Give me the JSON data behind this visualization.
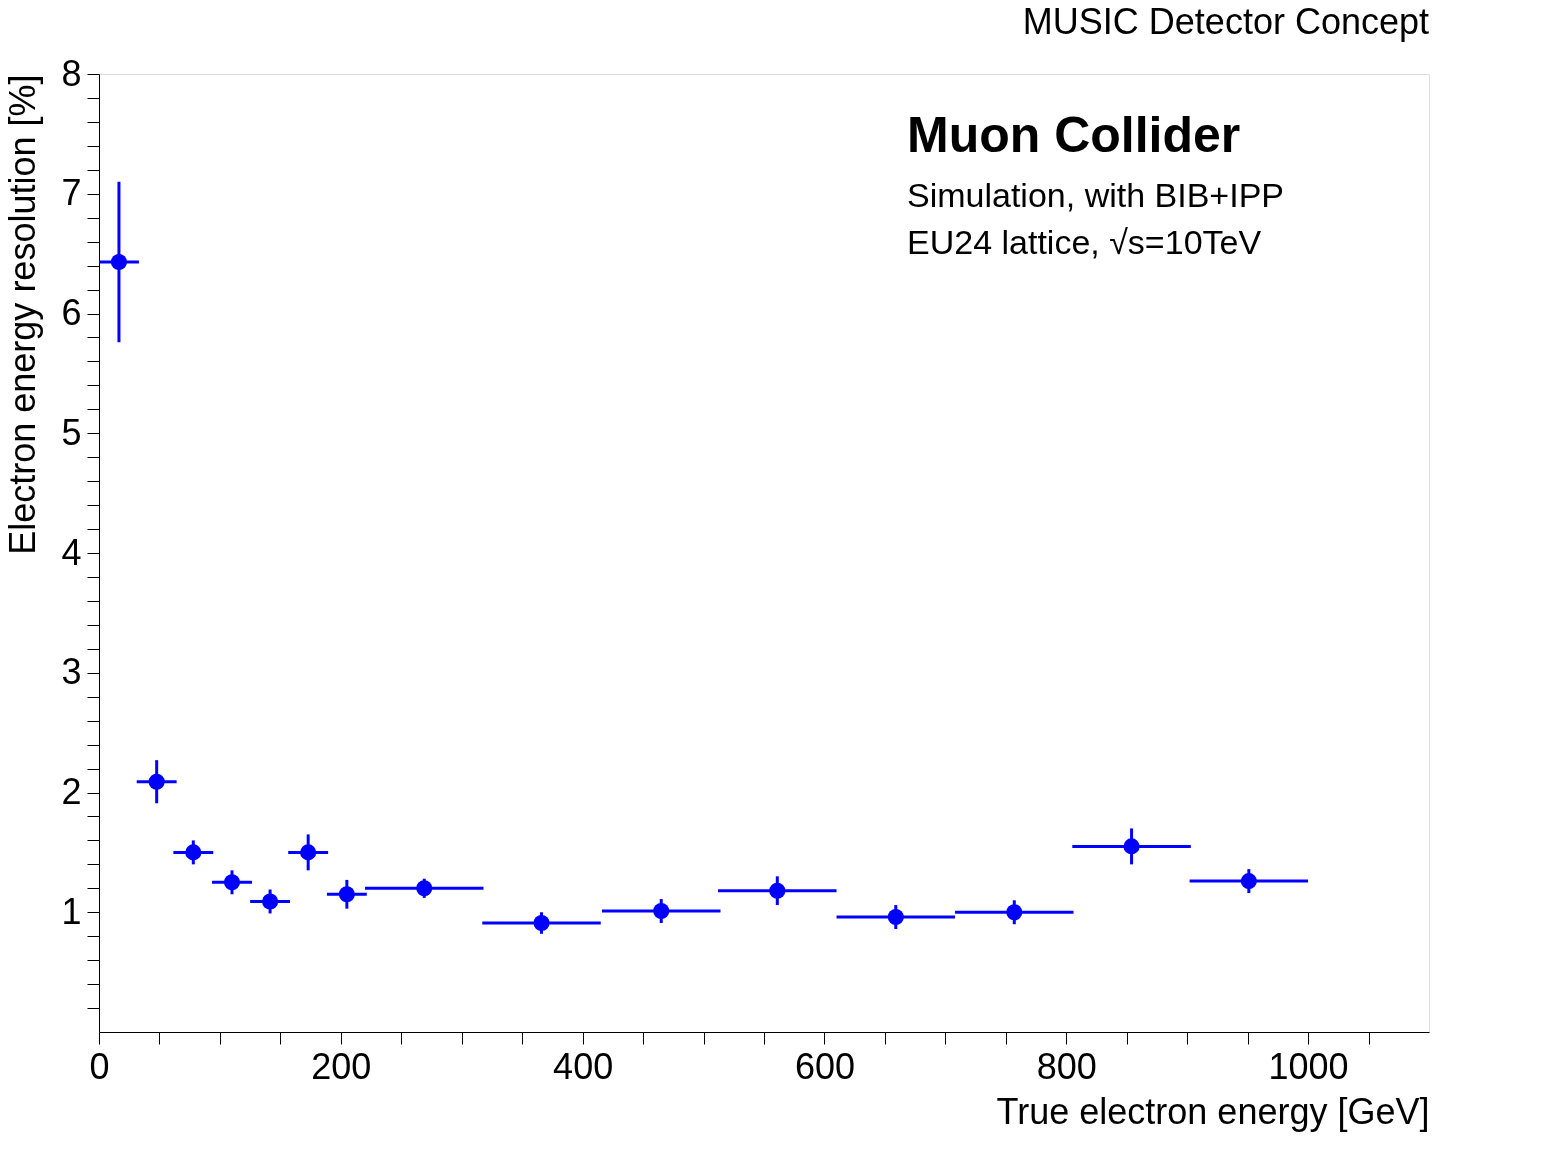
{
  "chart_data": {
    "type": "scatter",
    "title": "MUSIC Detector Concept",
    "xlabel": "True electron energy [GeV]",
    "ylabel": "Electron energy resolution [%]",
    "annotations": [
      "Muon Collider",
      "Simulation, with BIB+IPP",
      "EU24 lattice, √s=10TeV"
    ],
    "x": [
      16.5,
      47.7,
      78,
      110,
      141.5,
      173,
      205,
      269,
      366,
      465,
      561,
      659,
      757,
      854,
      951
    ],
    "series": [
      {
        "color": "#0000ff",
        "values": [
          6.43,
          2.09,
          1.5,
          1.25,
          1.09,
          1.5,
          1.15,
          1.2,
          0.91,
          1.01,
          1.18,
          0.96,
          1.0,
          1.55,
          1.26
        ],
        "errors": [
          0.67,
          0.18,
          0.1,
          0.1,
          0.1,
          0.15,
          0.12,
          0.08,
          0.09,
          0.1,
          0.12,
          0.1,
          0.1,
          0.15,
          0.1
        ],
        "xerrors": [
          16.5,
          16.5,
          16.5,
          16.5,
          16.5,
          16.5,
          16.5,
          49,
          49,
          49,
          49,
          49,
          49,
          49,
          49
        ]
      }
    ],
    "xlim": [
      0,
      1100
    ],
    "ylim": [
      0,
      8
    ],
    "xticks": [
      0,
      {
        "value": 50,
        "label": null
      },
      {
        "value": 100,
        "label": null
      },
      {
        "value": 150,
        "label": null
      },
      200,
      {
        "value": 250,
        "label": null
      },
      {
        "value": 300,
        "label": null
      },
      {
        "value": 350,
        "label": null
      },
      400,
      {
        "value": 450,
        "label": null
      },
      {
        "value": 500,
        "label": null
      },
      {
        "value": 550,
        "label": null
      },
      600,
      {
        "value": 650,
        "label": null
      },
      {
        "value": 700,
        "label": null
      },
      {
        "value": 750,
        "label": null
      },
      800,
      {
        "value": 850,
        "label": null
      },
      {
        "value": 900,
        "label": null
      },
      {
        "value": 950,
        "label": null
      },
      1000,
      {
        "value": 1050,
        "label": null
      }
    ],
    "yticks": [
      {
        "value": 0.2,
        "label": null
      },
      {
        "value": 0.4,
        "label": null
      },
      {
        "value": 0.6,
        "label": null
      },
      {
        "value": 0.8,
        "label": null
      },
      1,
      {
        "value": 1.2,
        "label": null
      },
      {
        "value": 1.4,
        "label": null
      },
      {
        "value": 1.6,
        "label": null
      },
      {
        "value": 1.8,
        "label": null
      },
      2,
      {
        "value": 2.2,
        "label": null
      },
      {
        "value": 2.4,
        "label": null
      },
      {
        "value": 2.6,
        "label": null
      },
      {
        "value": 2.8,
        "label": null
      },
      3,
      {
        "value": 3.2,
        "label": null
      },
      {
        "value": 3.4,
        "label": null
      },
      {
        "value": 3.6,
        "label": null
      },
      {
        "value": 3.8,
        "label": null
      },
      4,
      {
        "value": 4.2,
        "label": null
      },
      {
        "value": 4.4,
        "label": null
      },
      {
        "value": 4.6,
        "label": null
      },
      {
        "value": 4.8,
        "label": null
      },
      5,
      {
        "value": 5.2,
        "label": null
      },
      {
        "value": 5.4,
        "label": null
      },
      {
        "value": 5.6,
        "label": null
      },
      {
        "value": 5.8,
        "label": null
      },
      6,
      {
        "value": 6.2,
        "label": null
      },
      {
        "value": 6.4,
        "label": null
      },
      {
        "value": 6.6,
        "label": null
      },
      {
        "value": 6.8,
        "label": null
      },
      7,
      {
        "value": 7.2,
        "label": null
      },
      {
        "value": 7.4,
        "label": null
      },
      {
        "value": 7.6,
        "label": null
      },
      {
        "value": 7.8,
        "label": null
      },
      8
    ],
    "grid": false,
    "marker": "circle"
  }
}
